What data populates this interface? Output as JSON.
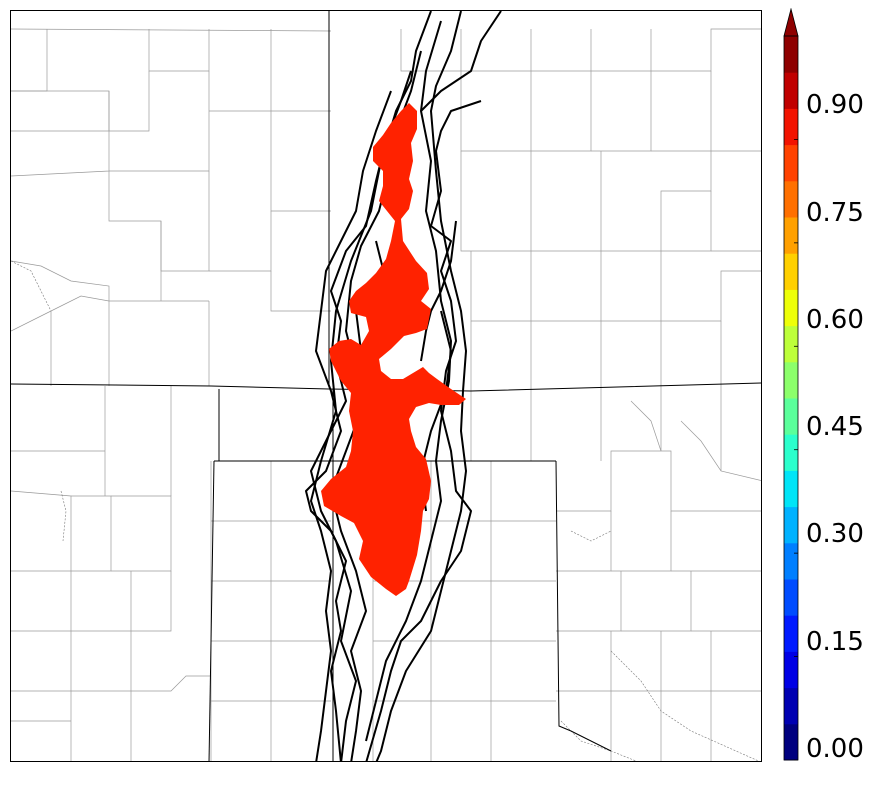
{
  "colorbar": {
    "tick_labels": [
      "0.90",
      "0.75",
      "0.60",
      "0.45",
      "0.30",
      "0.15",
      "0.00"
    ],
    "tick_values": [
      0.9,
      0.75,
      0.6,
      0.45,
      0.3,
      0.15,
      0.0
    ],
    "colors": [
      "#00007f",
      "#0000b2",
      "#0000e5",
      "#001aff",
      "#004cff",
      "#007fff",
      "#00b2ff",
      "#00e5f7",
      "#2bffcc",
      "#5bff9b",
      "#8cff6b",
      "#bdff3a",
      "#eeff09",
      "#ffd000",
      "#ffa000",
      "#ff7000",
      "#ff4200",
      "#f21300",
      "#c00000",
      "#8e0000"
    ],
    "extend": "max"
  },
  "probability_fill_color": "#ff2200"
}
